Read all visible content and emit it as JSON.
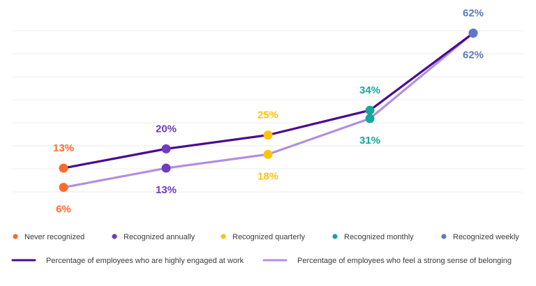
{
  "chart_data": {
    "type": "line",
    "categories": [
      "Never recognized",
      "Recognized annually",
      "Recognized quarterly",
      "Recognized monthly",
      "Recognized weekly"
    ],
    "category_colors": [
      "#ff6b2b",
      "#6f3bbf",
      "#ffc20e",
      "#14a79b",
      "#5b79c6"
    ],
    "series": [
      {
        "name": "Percentage of employees who are highly engaged at work",
        "color": "#4a0a8c",
        "values": [
          13,
          20,
          25,
          34,
          62
        ],
        "labels": [
          "13%",
          "20%",
          "25%",
          "34%",
          "62%"
        ]
      },
      {
        "name": "Percentage of employees who feel a strong sense of belonging",
        "color": "#b18fe0",
        "values": [
          6,
          13,
          18,
          31,
          62
        ],
        "labels": [
          "6%",
          "13%",
          "18%",
          "31%",
          "62%"
        ]
      }
    ],
    "ylim": [
      -7,
      72
    ],
    "grid": true,
    "legend_position": "bottom"
  }
}
